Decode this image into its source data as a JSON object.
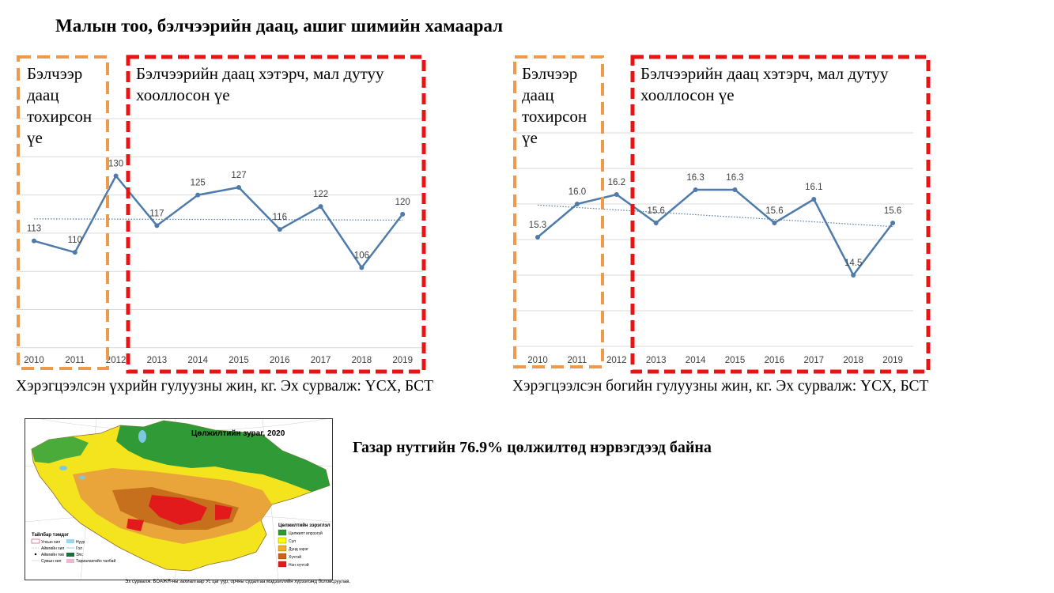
{
  "title": "Малын тоо, бэлчээрийн даац, ашиг шимийн хамаарал",
  "chart_data": [
    {
      "type": "line",
      "x": [
        "2010",
        "2011",
        "2012",
        "2013",
        "2014",
        "2015",
        "2016",
        "2017",
        "2018",
        "2019"
      ],
      "values": [
        113,
        110,
        130,
        117,
        125,
        127,
        116,
        122,
        106,
        120
      ],
      "data_labels": [
        "113",
        "110",
        "130",
        "117",
        "125",
        "127",
        "116",
        "122",
        "106",
        "120"
      ],
      "trendline": "linear",
      "grid": true,
      "color": "#4f7bab",
      "phase_boxes": [
        {
          "label": "Бэлчээр даац тохирсон үе",
          "color": "#ee9a4d",
          "style": "dashed"
        },
        {
          "label": "Бэлчээрийн даац хэтэрч, мал дутуу хооллосон үе",
          "color": "#e81313",
          "style": "dashed"
        }
      ],
      "caption": "Хэрэгцээлсэн үхрийн гулуузны жин, кг. Эх сурвалж: ҮСХ, БСТ"
    },
    {
      "type": "line",
      "x": [
        "2010",
        "2011",
        "2012",
        "2013",
        "2014",
        "2015",
        "2016",
        "2017",
        "2018",
        "2019"
      ],
      "values": [
        15.3,
        16.0,
        16.2,
        15.6,
        16.3,
        16.3,
        15.6,
        16.1,
        14.5,
        15.6
      ],
      "data_labels": [
        "15.3",
        "16.0",
        "16.2",
        "15.6",
        "16.3",
        "16.3",
        "15.6",
        "16.1",
        "14.5",
        "15.6"
      ],
      "trendline": "linear",
      "grid": true,
      "color": "#4f7bab",
      "phase_boxes": [
        {
          "label": "Бэлчээр даац тохирсон үе",
          "color": "#ee9a4d",
          "style": "dashed"
        },
        {
          "label": "Бэлчээрийн даац хэтэрч, мал дутуу хооллосон үе",
          "color": "#e81313",
          "style": "dashed"
        }
      ],
      "caption": "Хэрэгцээлсэн богийн гулуузны жин, кг. Эх сурвалж: ҮСХ, БСТ"
    }
  ],
  "charts": [
    {
      "phase1_lines": [
        "Бэлчээр",
        "даац",
        "тохирсон",
        "үе"
      ],
      "phase2_lines": [
        "Бэлчээрийн даац хэтэрч, мал дутуу",
        "хооллосон үе"
      ],
      "caption": "Хэрэгцээлсэн үхрийн гулуузны жин, кг. Эх сурвалж: ҮСХ, БСТ"
    },
    {
      "phase1_lines": [
        "Бэлчээр",
        "даац",
        "тохирсон",
        "үе"
      ],
      "phase2_lines": [
        "Бэлчээрийн даац хэтэрч, мал дутуу",
        "хооллосон үе"
      ],
      "caption": "Хэрэгцээлсэн богийн гулуузны жин, кг. Эх сурвалж: ҮСХ, БСТ"
    }
  ],
  "map": {
    "title": "Цөлжилтийн зураг, 2020",
    "legend_left_title": "Тайлбар тэмдэг",
    "legend_left_items": [
      "Улсын хил",
      "Аймгийн хил",
      "Аймгийн төв",
      "Сумын хил",
      "Нуур",
      "Гол",
      "Элс",
      "Тариалангийн талбай"
    ],
    "legend_right_title": "Цөлжилтийн зэрэглэл",
    "legend_right_items": [
      {
        "label": "Цөлжилт илрээгүй",
        "color": "#2e9a2e"
      },
      {
        "label": "Сул",
        "color": "#ffff00"
      },
      {
        "label": "Дунд зэрэг",
        "color": "#f0b020"
      },
      {
        "label": "Хүчтэй",
        "color": "#c86414"
      },
      {
        "label": "Нэн хүчтэй",
        "color": "#e31a1c"
      }
    ],
    "source": "Эх сурвалж: БОАЖЯ-ны захиалгаар Ус цаг уур, орчны судалгаа мэдээллийн хүрээлэнд боловсруулав."
  },
  "desert_note": "Газар нутгийн 76.9% цөлжилтөд нэрвэгдээд байна"
}
